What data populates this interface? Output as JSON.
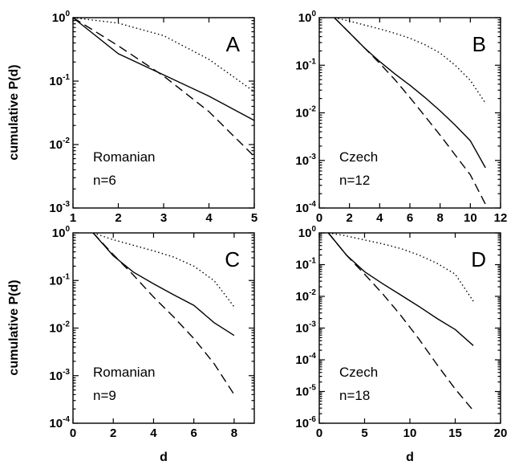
{
  "chart_data": [
    {
      "type": "line",
      "panel_label": "A",
      "annotations": [
        "Romanian",
        "n=6"
      ],
      "xlabel": "",
      "ylabel": "cumulative P(d)",
      "log_y": true,
      "xlim": [
        1,
        5
      ],
      "ylim": [
        0.001,
        1
      ],
      "xticks": [
        "1",
        "2",
        "3",
        "4",
        "5"
      ],
      "yticks": [
        {
          "base": "10",
          "exp": "-3"
        },
        {
          "base": "10",
          "exp": "-2"
        },
        {
          "base": "10",
          "exp": "-1"
        },
        {
          "base": "10",
          "exp": "0"
        }
      ],
      "series": [
        {
          "style": "solid",
          "x": [
            1,
            2,
            3,
            4,
            5
          ],
          "y": [
            1.0,
            0.27,
            0.125,
            0.058,
            0.024
          ]
        },
        {
          "style": "dashed",
          "x": [
            1,
            2,
            3,
            4,
            5
          ],
          "y": [
            1.0,
            0.36,
            0.12,
            0.033,
            0.0065
          ]
        },
        {
          "style": "dotted",
          "x": [
            1,
            2,
            3,
            4,
            5
          ],
          "y": [
            1.0,
            0.82,
            0.52,
            0.22,
            0.068
          ]
        }
      ]
    },
    {
      "type": "line",
      "panel_label": "B",
      "annotations": [
        "Czech",
        "n=12"
      ],
      "xlabel": "",
      "ylabel": "",
      "log_y": true,
      "xlim": [
        0,
        12
      ],
      "ylim": [
        0.0001,
        1
      ],
      "xticks": [
        "0",
        "2",
        "4",
        "6",
        "8",
        "10",
        "12"
      ],
      "yticks": [
        {
          "base": "10",
          "exp": "-4"
        },
        {
          "base": "10",
          "exp": "-3"
        },
        {
          "base": "10",
          "exp": "-2"
        },
        {
          "base": "10",
          "exp": "-1"
        },
        {
          "base": "10",
          "exp": "0"
        }
      ],
      "series": [
        {
          "style": "solid",
          "x": [
            1,
            2,
            3,
            4,
            5,
            6,
            7,
            8,
            9,
            10,
            11
          ],
          "y": [
            1.0,
            0.48,
            0.23,
            0.12,
            0.066,
            0.038,
            0.021,
            0.011,
            0.0055,
            0.0026,
            0.0007
          ]
        },
        {
          "style": "dashed",
          "x": [
            1,
            2,
            3,
            4,
            5,
            6,
            7,
            8,
            9,
            10,
            11
          ],
          "y": [
            1.0,
            0.48,
            0.23,
            0.11,
            0.05,
            0.021,
            0.0085,
            0.0034,
            0.0013,
            0.0005,
            0.00012
          ]
        },
        {
          "style": "dotted",
          "x": [
            1,
            2,
            3,
            4,
            5,
            6,
            7,
            8,
            9,
            10,
            11
          ],
          "y": [
            1.0,
            0.85,
            0.7,
            0.58,
            0.47,
            0.37,
            0.27,
            0.18,
            0.1,
            0.048,
            0.016
          ]
        }
      ]
    },
    {
      "type": "line",
      "panel_label": "C",
      "annotations": [
        "Romanian",
        "n=9"
      ],
      "xlabel": "d",
      "ylabel": "cumulative P(d)",
      "log_y": true,
      "xlim": [
        0,
        9
      ],
      "ylim": [
        0.0001,
        1
      ],
      "xticks": [
        "0",
        "2",
        "4",
        "6",
        "8"
      ],
      "yticks": [
        {
          "base": "10",
          "exp": "-4"
        },
        {
          "base": "10",
          "exp": "-3"
        },
        {
          "base": "10",
          "exp": "-2"
        },
        {
          "base": "10",
          "exp": "-1"
        },
        {
          "base": "10",
          "exp": "0"
        }
      ],
      "series": [
        {
          "style": "solid",
          "x": [
            1,
            2,
            3,
            4,
            5,
            6,
            7,
            8
          ],
          "y": [
            1.0,
            0.33,
            0.15,
            0.085,
            0.05,
            0.03,
            0.013,
            0.007
          ]
        },
        {
          "style": "dashed",
          "x": [
            1,
            2,
            3,
            4,
            5,
            6,
            7,
            8
          ],
          "y": [
            1.0,
            0.35,
            0.13,
            0.045,
            0.017,
            0.006,
            0.0018,
            0.0004
          ]
        },
        {
          "style": "dotted",
          "x": [
            1,
            2,
            3,
            4,
            5,
            6,
            7,
            8
          ],
          "y": [
            1.0,
            0.72,
            0.55,
            0.42,
            0.31,
            0.2,
            0.1,
            0.028
          ]
        }
      ]
    },
    {
      "type": "line",
      "panel_label": "D",
      "annotations": [
        "Czech",
        "n=18"
      ],
      "xlabel": "d",
      "ylabel": "",
      "log_y": true,
      "xlim": [
        0,
        20
      ],
      "ylim": [
        1e-06,
        1
      ],
      "xticks": [
        "0",
        "5",
        "10",
        "15",
        "20"
      ],
      "yticks": [
        {
          "base": "10",
          "exp": "-6"
        },
        {
          "base": "10",
          "exp": "-5"
        },
        {
          "base": "10",
          "exp": "-4"
        },
        {
          "base": "10",
          "exp": "-3"
        },
        {
          "base": "10",
          "exp": "-2"
        },
        {
          "base": "10",
          "exp": "-1"
        },
        {
          "base": "10",
          "exp": "0"
        }
      ],
      "series": [
        {
          "style": "solid",
          "x": [
            1,
            3,
            5,
            7,
            9,
            11,
            13,
            15,
            17
          ],
          "y": [
            1.0,
            0.2,
            0.06,
            0.025,
            0.011,
            0.0048,
            0.002,
            0.0009,
            0.00028
          ]
        },
        {
          "style": "dashed",
          "x": [
            1,
            3,
            5,
            7,
            9,
            11,
            13,
            15,
            17
          ],
          "y": [
            1.0,
            0.2,
            0.05,
            0.012,
            0.0025,
            0.00045,
            7e-05,
            1.2e-05,
            2.5e-06
          ]
        },
        {
          "style": "dotted",
          "x": [
            1,
            3,
            5,
            7,
            9,
            11,
            13,
            15,
            17
          ],
          "y": [
            1.0,
            0.8,
            0.6,
            0.45,
            0.32,
            0.2,
            0.11,
            0.05,
            0.007
          ]
        }
      ]
    }
  ]
}
